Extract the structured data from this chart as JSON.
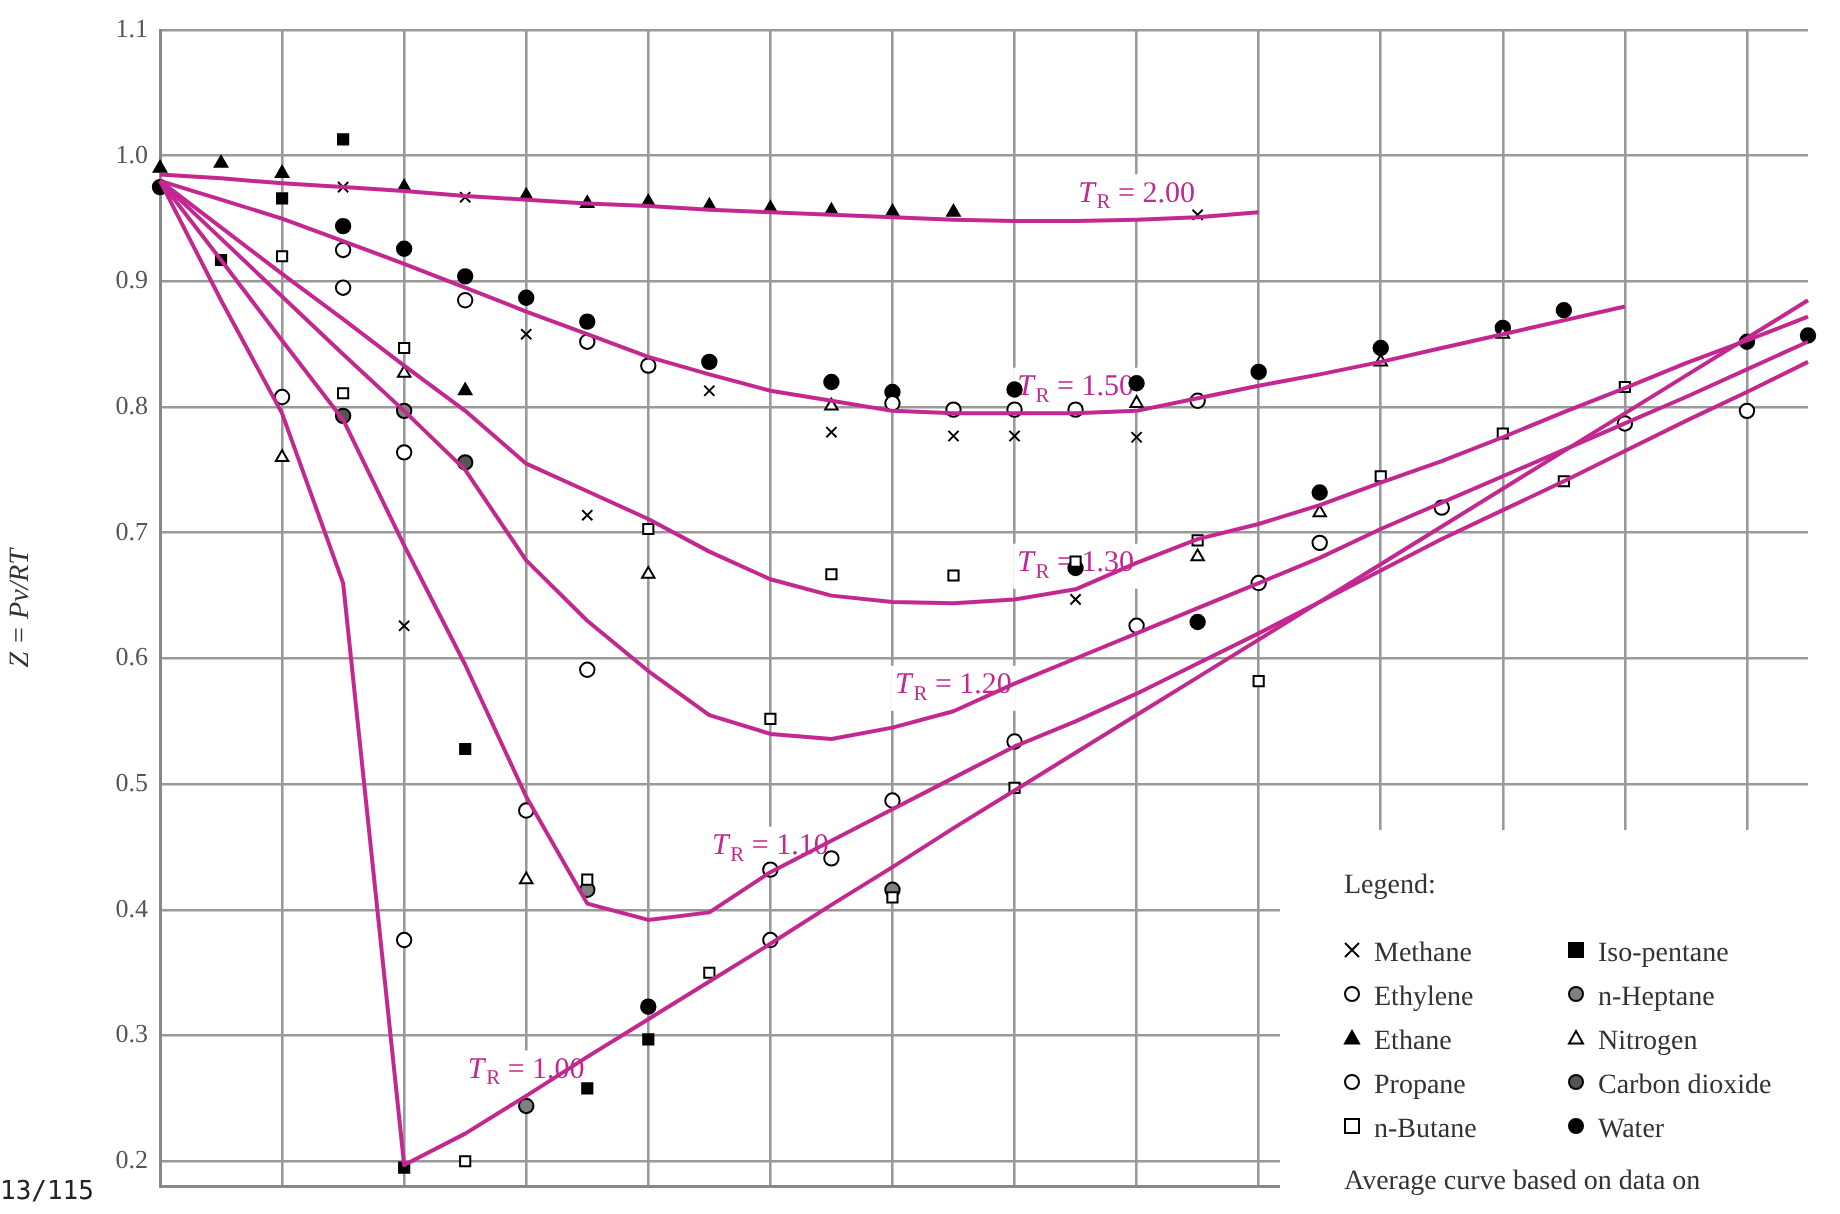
{
  "chart_data": {
    "type": "line",
    "ylabel": "Z = Pv/RT",
    "legend_title": "Legend:",
    "legend": "bottom right",
    "grid": true,
    "tick_labels": "y",
    "annotations": [
      "Average curve based on data on",
      "13/115"
    ],
    "categories": [
      null,
      null,
      null,
      null,
      null,
      null,
      null,
      null,
      null,
      null,
      null,
      null,
      null,
      null,
      null,
      null,
      null,
      null,
      null,
      null,
      null,
      null,
      null,
      null,
      null,
      null,
      null,
      null
    ],
    "ylim": [
      0.18,
      1.1
    ],
    "yticks": [
      {
        "value": 0.2,
        "label": "0.2"
      },
      {
        "value": 0.3,
        "label": "0.3"
      },
      {
        "value": 0.4,
        "label": "0.4"
      },
      {
        "value": 0.5,
        "label": "0.5"
      },
      {
        "value": 0.6,
        "label": "0.6"
      },
      {
        "value": 0.7,
        "label": "0.7"
      },
      {
        "value": 0.8,
        "label": "0.8"
      },
      {
        "value": 0.9,
        "label": "0.9"
      },
      {
        "value": 1.0,
        "label": "1.0"
      },
      {
        "value": 1.1,
        "label": "1.1"
      }
    ],
    "series": [
      {
        "name": "T$_{R}$ = 2.00",
        "marker": "none",
        "color": "#c2288f",
        "values": [
          0.985,
          0.982,
          0.978,
          0.975,
          0.972,
          0.968,
          0.965,
          0.962,
          0.96,
          0.957,
          0.955,
          0.953,
          0.951,
          0.949,
          0.948,
          0.948,
          0.949,
          0.951,
          0.955,
          null,
          null,
          null,
          null,
          null,
          null,
          null,
          null,
          null
        ]
      },
      {
        "name": "T$_{R}$ = 1.50",
        "marker": "none",
        "color": "#c2288f",
        "values": [
          0.98,
          0.965,
          0.95,
          0.932,
          0.914,
          0.895,
          0.876,
          0.858,
          0.84,
          0.826,
          0.813,
          0.805,
          0.797,
          0.795,
          0.795,
          0.795,
          0.797,
          0.807,
          0.817,
          0.826,
          0.836,
          0.847,
          0.858,
          0.869,
          0.88,
          null,
          null,
          null
        ]
      },
      {
        "name": "T$_{R}$ = 1.30",
        "marker": "none",
        "color": "#c2288f",
        "values": [
          0.98,
          0.943,
          0.906,
          0.87,
          0.833,
          0.797,
          0.755,
          0.733,
          0.711,
          0.685,
          0.663,
          0.65,
          0.645,
          0.644,
          0.647,
          0.655,
          0.676,
          0.695,
          0.707,
          0.722,
          0.74,
          0.757,
          0.776,
          0.796,
          0.815,
          0.835,
          0.853,
          0.872
        ]
      },
      {
        "name": "T$_{R}$ = 1.20",
        "marker": "none",
        "color": "#c2288f",
        "values": [
          0.98,
          0.934,
          0.888,
          0.842,
          0.797,
          0.75,
          0.678,
          0.63,
          0.59,
          0.555,
          0.54,
          0.536,
          0.545,
          0.558,
          0.58,
          0.6,
          0.62,
          0.64,
          0.66,
          0.68,
          0.703,
          0.724,
          0.745,
          0.766,
          0.787,
          0.808,
          0.83,
          0.852
        ]
      },
      {
        "name": "T$_{R}$ = 1.10",
        "marker": "none",
        "color": "#c2288f",
        "values": [
          0.98,
          0.917,
          0.853,
          0.79,
          0.69,
          0.595,
          0.49,
          0.405,
          0.392,
          0.398,
          0.43,
          0.455,
          0.48,
          0.505,
          0.53,
          0.55,
          0.572,
          0.596,
          0.62,
          0.645,
          0.67,
          0.695,
          0.718,
          0.741,
          0.765,
          0.789,
          0.812,
          0.836
        ]
      },
      {
        "name": "T$_{R}$ = 1.00",
        "marker": "none",
        "color": "#c2288f",
        "values": [
          0.98,
          0.885,
          0.795,
          0.66,
          0.197,
          0.222,
          0.252,
          0.283,
          0.313,
          0.343,
          0.373,
          0.404,
          0.434,
          0.465,
          0.495,
          0.525,
          0.555,
          0.585,
          0.615,
          0.645,
          0.675,
          0.705,
          0.735,
          0.765,
          0.795,
          0.825,
          0.855,
          0.885
        ]
      },
      {
        "name": "Methane",
        "type": "scatter",
        "marker": "cross",
        "color": "#000000",
        "values": [
          null,
          null,
          null,
          0.975,
          0.626,
          0.967,
          0.858,
          0.714,
          null,
          0.813,
          null,
          0.78,
          null,
          0.777,
          0.777,
          0.647,
          0.776,
          0.953,
          null,
          null,
          null,
          null,
          null,
          null,
          null,
          null,
          null,
          null
        ]
      },
      {
        "name": "Ethylene",
        "type": "scatter",
        "marker": "circle",
        "color": "#ffffff",
        "values": [
          null,
          null,
          null,
          0.925,
          0.376,
          0.885,
          null,
          0.852,
          0.833,
          null,
          0.376,
          null,
          0.803,
          0.798,
          0.798,
          0.798,
          null,
          0.805,
          null,
          null,
          null,
          null,
          null,
          null,
          null,
          null,
          null,
          null
        ]
      },
      {
        "name": "Ethane",
        "type": "scatter",
        "marker": "triangle",
        "color": "#000000",
        "values": [
          0.99,
          0.994,
          0.986,
          null,
          0.975,
          0.813,
          0.968,
          0.962,
          0.963,
          0.96,
          0.958,
          0.956,
          0.955,
          0.955,
          null,
          null,
          null,
          null,
          null,
          null,
          null,
          null,
          null,
          null,
          null,
          null,
          null,
          null
        ]
      },
      {
        "name": "Propane",
        "type": "scatter",
        "marker": "circle",
        "color": "#ffffff",
        "values": [
          null,
          null,
          0.808,
          0.895,
          0.764,
          null,
          0.479,
          0.591,
          null,
          null,
          0.432,
          0.441,
          0.487,
          null,
          0.534,
          null,
          0.626,
          null,
          0.66,
          0.692,
          null,
          0.72,
          null,
          null,
          0.787,
          null,
          0.797,
          null
        ]
      },
      {
        "name": "n-Butane",
        "type": "scatter",
        "marker": "square",
        "color": "#ffffff",
        "values": [
          null,
          null,
          0.92,
          0.811,
          0.847,
          0.2,
          null,
          0.424,
          0.703,
          0.35,
          0.552,
          0.667,
          0.41,
          0.666,
          0.497,
          0.677,
          null,
          0.694,
          0.582,
          null,
          0.745,
          null,
          0.779,
          0.741,
          0.816,
          null,
          null,
          null
        ]
      },
      {
        "name": "Iso-pentane",
        "type": "scatter",
        "marker": "square",
        "color": "#000000",
        "values": [
          null,
          0.917,
          0.966,
          1.013,
          0.195,
          0.528,
          null,
          0.258,
          0.297,
          null,
          null,
          null,
          null,
          null,
          null,
          null,
          null,
          null,
          null,
          null,
          null,
          null,
          null,
          null,
          null,
          null,
          null,
          null
        ]
      },
      {
        "name": "n-Heptane",
        "type": "scatter",
        "marker": "circle",
        "color": "#808080",
        "values": [
          null,
          null,
          null,
          null,
          0.797,
          null,
          0.244,
          0.416,
          null,
          null,
          null,
          null,
          0.416,
          null,
          null,
          null,
          null,
          null,
          null,
          null,
          null,
          null,
          null,
          null,
          null,
          null,
          null,
          null
        ]
      },
      {
        "name": "Nitrogen",
        "type": "scatter",
        "marker": "triangle",
        "color": "#ffffff",
        "values": [
          null,
          null,
          0.76,
          null,
          0.827,
          null,
          0.424,
          null,
          0.667,
          null,
          null,
          0.801,
          null,
          null,
          null,
          null,
          0.803,
          0.681,
          null,
          0.716,
          0.836,
          null,
          0.858,
          null,
          null,
          null,
          null,
          null
        ]
      },
      {
        "name": "Carbon dioxide",
        "type": "scatter",
        "marker": "circle",
        "color": "#555555",
        "values": [
          null,
          null,
          null,
          0.793,
          null,
          0.756,
          null,
          null,
          null,
          null,
          null,
          null,
          null,
          null,
          null,
          null,
          null,
          null,
          null,
          null,
          null,
          null,
          null,
          null,
          null,
          null,
          null,
          null
        ]
      },
      {
        "name": "Water",
        "type": "scatter",
        "marker": "circle",
        "color": "#000000",
        "values": [
          0.975,
          null,
          null,
          0.944,
          0.926,
          0.904,
          0.887,
          0.868,
          0.323,
          0.836,
          null,
          0.82,
          0.812,
          null,
          0.814,
          0.672,
          0.819,
          0.629,
          0.828,
          0.732,
          0.847,
          null,
          0.863,
          0.877,
          null,
          null,
          0.852,
          0.857
        ]
      }
    ]
  }
}
